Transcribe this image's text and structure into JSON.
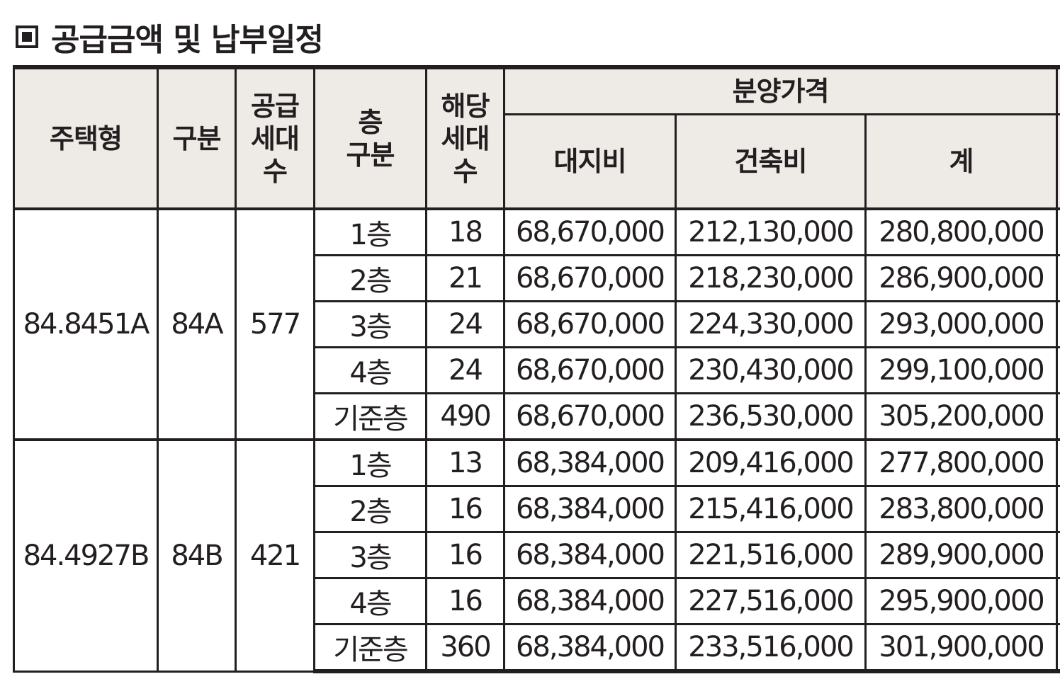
{
  "title": "공급금액 및 납부일정",
  "title_icon": "filled-square-icon",
  "table": {
    "headers": {
      "unit_type": "주택형",
      "category": "구분",
      "supply_households": [
        "공급",
        "세대",
        "수"
      ],
      "floor_category": [
        "층",
        "구분"
      ],
      "floor_households": [
        "해당",
        "세대",
        "수"
      ],
      "sale_price": "분양가격",
      "land_cost": "대지비",
      "construction_cost": "건축비",
      "total": "계"
    },
    "groups": [
      {
        "unit_type": "84.8451A",
        "category": "84A",
        "supply_households": "577",
        "rows": [
          {
            "floor": "1층",
            "households": "18",
            "land": "68,670,000",
            "construction": "212,130,000",
            "total": "280,800,000"
          },
          {
            "floor": "2층",
            "households": "21",
            "land": "68,670,000",
            "construction": "218,230,000",
            "total": "286,900,000"
          },
          {
            "floor": "3층",
            "households": "24",
            "land": "68,670,000",
            "construction": "224,330,000",
            "total": "293,000,000"
          },
          {
            "floor": "4층",
            "households": "24",
            "land": "68,670,000",
            "construction": "230,430,000",
            "total": "299,100,000"
          },
          {
            "floor": "기준층",
            "households": "490",
            "land": "68,670,000",
            "construction": "236,530,000",
            "total": "305,200,000"
          }
        ]
      },
      {
        "unit_type": "84.4927B",
        "category": "84B",
        "supply_households": "421",
        "rows": [
          {
            "floor": "1층",
            "households": "13",
            "land": "68,384,000",
            "construction": "209,416,000",
            "total": "277,800,000"
          },
          {
            "floor": "2층",
            "households": "16",
            "land": "68,384,000",
            "construction": "215,416,000",
            "total": "283,800,000"
          },
          {
            "floor": "3층",
            "households": "16",
            "land": "68,384,000",
            "construction": "221,516,000",
            "total": "289,900,000"
          },
          {
            "floor": "4층",
            "households": "16",
            "land": "68,384,000",
            "construction": "227,516,000",
            "total": "295,900,000"
          },
          {
            "floor": "기준층",
            "households": "360",
            "land": "68,384,000",
            "construction": "233,516,000",
            "total": "301,900,000"
          }
        ]
      }
    ]
  }
}
